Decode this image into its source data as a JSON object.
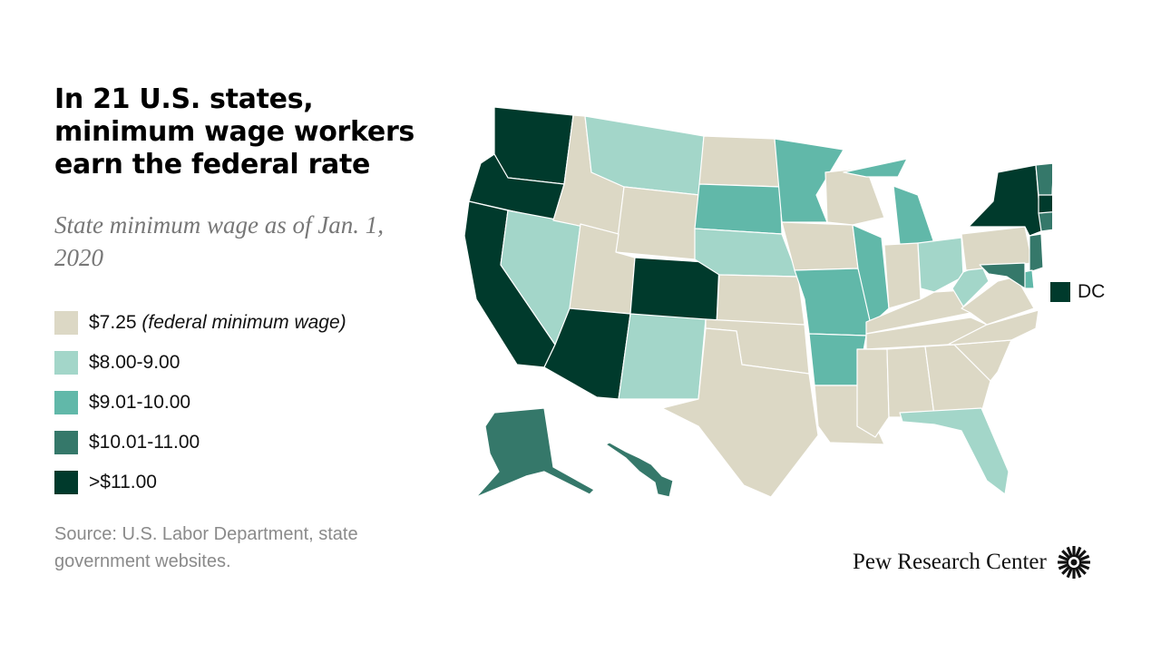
{
  "title": "In 21 U.S. states, minimum wage workers earn the federal rate",
  "subtitle": "State minimum wage as of Jan. 1, 2020",
  "legend": [
    {
      "label": "$7.25",
      "note": "(federal minimum wage)",
      "color": "#dcd8c5"
    },
    {
      "label": "$8.00-9.00",
      "note": "",
      "color": "#a3d6c9"
    },
    {
      "label": "$9.01-10.00",
      "note": "",
      "color": "#61b8a9"
    },
    {
      "label": "$10.01-11.00",
      "note": "",
      "color": "#35786a"
    },
    {
      "label": ">$11.00",
      "note": "",
      "color": "#003a2c"
    }
  ],
  "dc": {
    "label": "DC",
    "color": "#003a2c"
  },
  "source": "Source: U.S. Labor Department, state government websites.",
  "logo": {
    "text": "Pew Research Center",
    "icon": "pew-sunburst-icon"
  },
  "map_data": {
    "type": "choropleth",
    "states_by_category": {
      "$7.25": [
        "ID",
        "WY",
        "UT",
        "ND",
        "KS",
        "OK",
        "TX",
        "IA",
        "WI",
        "IN",
        "KY",
        "TN",
        "LA",
        "MS",
        "AL",
        "GA",
        "SC",
        "NC",
        "VA",
        "PA",
        "NH"
      ],
      "$8.00-9.00": [
        "MT",
        "NV",
        "NM",
        "NE",
        "OH",
        "WV",
        "FL"
      ],
      "$9.01-10.00": [
        "SD",
        "MN",
        "MO",
        "AR",
        "IL",
        "MI",
        "DE"
      ],
      "$10.01-11.00": [
        "AK",
        "HI",
        "VT",
        "NJ",
        "CT",
        "MD"
      ],
      ">$11.00": [
        "WA",
        "OR",
        "CA",
        "AZ",
        "CO",
        "NY",
        "ME",
        "MA",
        "RI",
        "DC"
      ]
    }
  }
}
